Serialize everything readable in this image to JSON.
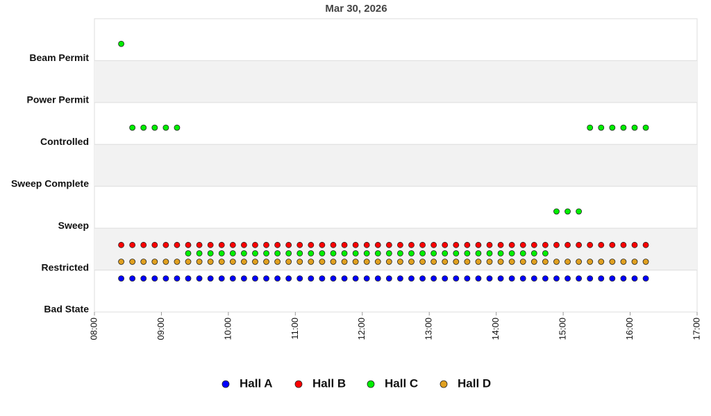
{
  "chart_data": {
    "type": "scatter",
    "title": "Mar 30, 2026",
    "x": [
      "08:24",
      "08:34",
      "08:44",
      "08:54",
      "09:04",
      "09:14",
      "09:24",
      "09:34",
      "09:44",
      "09:54",
      "10:04",
      "10:14",
      "10:24",
      "10:34",
      "10:44",
      "10:54",
      "11:04",
      "11:14",
      "11:24",
      "11:34",
      "11:44",
      "11:54",
      "12:04",
      "12:14",
      "12:24",
      "12:34",
      "12:44",
      "12:54",
      "13:04",
      "13:14",
      "13:24",
      "13:34",
      "13:44",
      "13:54",
      "14:04",
      "14:14",
      "14:24",
      "14:34",
      "14:44",
      "14:54",
      "15:04",
      "15:14",
      "15:24",
      "15:34",
      "15:44",
      "15:54",
      "16:04",
      "16:14"
    ],
    "series": [
      {
        "name": "Hall A",
        "color": "#0000ff",
        "values": [
          0.8,
          0.8,
          0.8,
          0.8,
          0.8,
          0.8,
          0.8,
          0.8,
          0.8,
          0.8,
          0.8,
          0.8,
          0.8,
          0.8,
          0.8,
          0.8,
          0.8,
          0.8,
          0.8,
          0.8,
          0.8,
          0.8,
          0.8,
          0.8,
          0.8,
          0.8,
          0.8,
          0.8,
          0.8,
          0.8,
          0.8,
          0.8,
          0.8,
          0.8,
          0.8,
          0.8,
          0.8,
          0.8,
          0.8,
          0.8,
          0.8,
          0.8,
          0.8,
          0.8,
          0.8,
          0.8,
          0.8,
          0.8
        ]
      },
      {
        "name": "Hall B",
        "color": "#ff0000",
        "values": [
          1.6,
          1.6,
          1.6,
          1.6,
          1.6,
          1.6,
          1.6,
          1.6,
          1.6,
          1.6,
          1.6,
          1.6,
          1.6,
          1.6,
          1.6,
          1.6,
          1.6,
          1.6,
          1.6,
          1.6,
          1.6,
          1.6,
          1.6,
          1.6,
          1.6,
          1.6,
          1.6,
          1.6,
          1.6,
          1.6,
          1.6,
          1.6,
          1.6,
          1.6,
          1.6,
          1.6,
          1.6,
          1.6,
          1.6,
          1.6,
          1.6,
          1.6,
          1.6,
          1.6,
          1.6,
          1.6,
          1.6,
          1.6
        ]
      },
      {
        "name": "Hall C",
        "color": "#00ee00",
        "values": [
          6.4,
          4.4,
          4.4,
          4.4,
          4.4,
          4.4,
          1.4,
          1.4,
          1.4,
          1.4,
          1.4,
          1.4,
          1.4,
          1.4,
          1.4,
          1.4,
          1.4,
          1.4,
          1.4,
          1.4,
          1.4,
          1.4,
          1.4,
          1.4,
          1.4,
          1.4,
          1.4,
          1.4,
          1.4,
          1.4,
          1.4,
          1.4,
          1.4,
          1.4,
          1.4,
          1.4,
          1.4,
          1.4,
          1.4,
          2.4,
          2.4,
          2.4,
          4.4,
          4.4,
          4.4,
          4.4,
          4.4,
          4.4
        ]
      },
      {
        "name": "Hall D",
        "color": "#e0a020",
        "values": [
          1.2,
          1.2,
          1.2,
          1.2,
          1.2,
          1.2,
          1.2,
          1.2,
          1.2,
          1.2,
          1.2,
          1.2,
          1.2,
          1.2,
          1.2,
          1.2,
          1.2,
          1.2,
          1.2,
          1.2,
          1.2,
          1.2,
          1.2,
          1.2,
          1.2,
          1.2,
          1.2,
          1.2,
          1.2,
          1.2,
          1.2,
          1.2,
          1.2,
          1.2,
          1.2,
          1.2,
          1.2,
          1.2,
          1.2,
          1.2,
          1.2,
          1.2,
          1.2,
          1.2,
          1.2,
          1.2,
          1.2,
          1.2
        ]
      }
    ],
    "xlim": [
      "08:00",
      "17:00"
    ],
    "xticks": [
      "08:00",
      "09:00",
      "10:00",
      "11:00",
      "12:00",
      "13:00",
      "14:00",
      "15:00",
      "16:00",
      "17:00"
    ],
    "ylim": [
      0,
      7
    ],
    "yticks": [
      {
        "value": 0,
        "label": "Bad State"
      },
      {
        "value": 1,
        "label": "Restricted"
      },
      {
        "value": 2,
        "label": "Sweep"
      },
      {
        "value": 3,
        "label": "Sweep Complete"
      },
      {
        "value": 4,
        "label": "Controlled"
      },
      {
        "value": 5,
        "label": "Power Permit"
      },
      {
        "value": 6,
        "label": "Beam Permit"
      }
    ],
    "grid": true
  }
}
